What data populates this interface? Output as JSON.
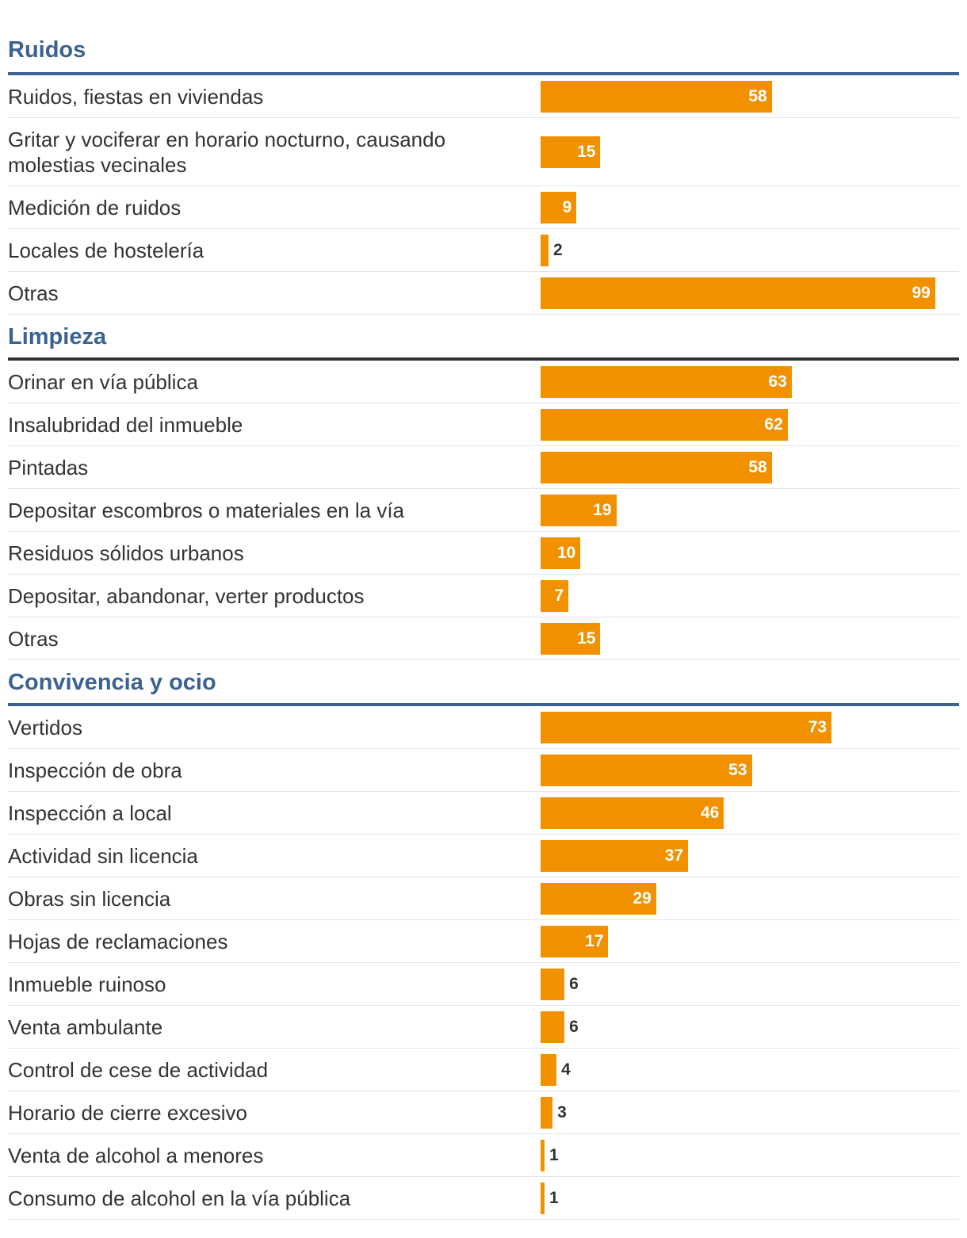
{
  "chart_data": {
    "type": "bar",
    "orientation": "horizontal",
    "xlim": [
      0,
      105
    ],
    "colors": {
      "bar": "#f29100",
      "title": "#3b6291",
      "rule_blue": "#3b6291",
      "rule_dark": "#333333"
    },
    "groups": [
      {
        "title": "Ruidos",
        "rule_color": "#3b6291",
        "items": [
          {
            "label": "Ruidos, fiestas en viviendas",
            "value": 58
          },
          {
            "label": "Gritar y vociferar en horario nocturno, causando molestias vecinales",
            "value": 15
          },
          {
            "label": "Medición de ruidos",
            "value": 9
          },
          {
            "label": "Locales de hostelería",
            "value": 2
          },
          {
            "label": "Otras",
            "value": 99
          }
        ]
      },
      {
        "title": "Limpieza",
        "rule_color": "#333333",
        "items": [
          {
            "label": "Orinar en vía pública",
            "value": 63
          },
          {
            "label": "Insalubridad del inmueble",
            "value": 62
          },
          {
            "label": "Pintadas",
            "value": 58
          },
          {
            "label": "Depositar escombros o materiales en la vía",
            "value": 19
          },
          {
            "label": "Residuos sólidos urbanos",
            "value": 10
          },
          {
            "label": "Depositar, abandonar, verter productos",
            "value": 7
          },
          {
            "label": "Otras",
            "value": 15
          }
        ]
      },
      {
        "title": "Convivencia y ocio",
        "rule_color": "#3b6291",
        "items": [
          {
            "label": "Vertidos",
            "value": 73
          },
          {
            "label": "Inspección de obra",
            "value": 53
          },
          {
            "label": "Inspección a local",
            "value": 46
          },
          {
            "label": "Actividad sin licencia",
            "value": 37
          },
          {
            "label": "Obras sin licencia",
            "value": 29
          },
          {
            "label": "Hojas de reclamaciones",
            "value": 17
          },
          {
            "label": "Inmueble ruinoso",
            "value": 6
          },
          {
            "label": "Venta ambulante",
            "value": 6
          },
          {
            "label": "Control de cese de actividad",
            "value": 4
          },
          {
            "label": "Horario de cierre excesivo",
            "value": 3
          },
          {
            "label": "Venta de alcohol a menores",
            "value": 1
          },
          {
            "label": "Consumo de alcohol en la vía pública",
            "value": 1
          }
        ]
      }
    ]
  }
}
